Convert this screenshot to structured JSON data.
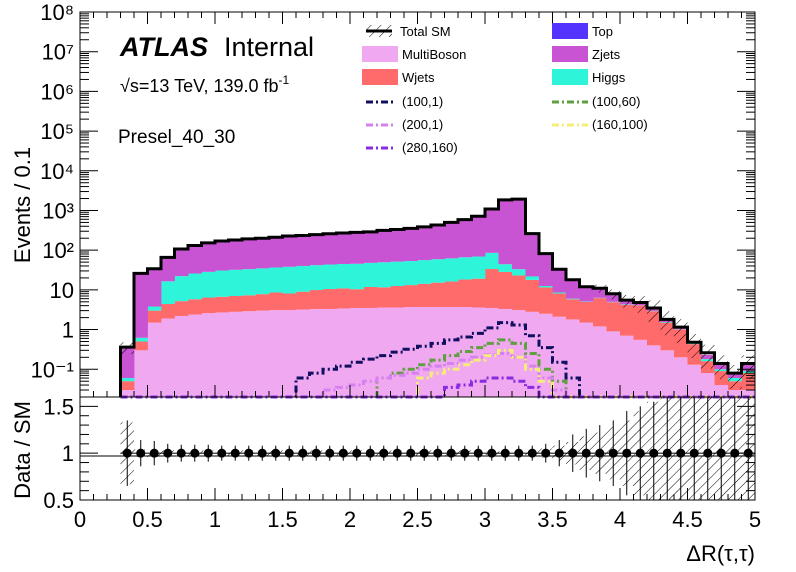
{
  "chart_data": [
    {
      "type": "histogram-stack",
      "title": "",
      "xlabel": "ΔR(τ,τ)",
      "ylabel": "Events / 0.1",
      "xlim": [
        0,
        5
      ],
      "ylim": [
        0.02,
        100000000
      ],
      "log_y": true,
      "bin_edges_start": 0.3,
      "bin_width": 0.1,
      "x_ticks": [
        "0",
        "0.5",
        "1",
        "1.5",
        "2",
        "2.5",
        "3",
        "3.5",
        "4",
        "4.5",
        "5"
      ],
      "y_ticks": [
        "10⁻¹",
        "1",
        "10",
        "10²",
        "10³",
        "10⁴",
        "10⁵",
        "10⁶",
        "10⁷",
        "10⁸"
      ],
      "series": [
        {
          "name": "MultiBoson",
          "color": "#f0a8f0",
          "values": [
            0.03,
            0.3,
            1.5,
            1.9,
            2.2,
            2.4,
            2.6,
            2.7,
            2.8,
            2.9,
            3.0,
            3.1,
            3.1,
            3.2,
            3.3,
            3.3,
            3.4,
            3.5,
            3.5,
            3.6,
            3.6,
            3.7,
            3.7,
            3.7,
            3.7,
            3.7,
            3.6,
            3.5,
            3.3,
            3.1,
            2.8,
            2.5,
            2.1,
            1.8,
            1.5,
            1.2,
            0.9,
            0.7,
            0.55,
            0.4,
            0.3,
            0.2,
            0.13,
            0.08,
            0.04,
            0.03,
            0.03
          ]
        },
        {
          "name": "Wjets",
          "color": "#ff6b6b",
          "values": [
            0.02,
            0.2,
            1.5,
            2.5,
            3.0,
            3.4,
            3.8,
            4.0,
            4.2,
            4.4,
            4.8,
            5.5,
            5.0,
            5.8,
            6.6,
            7.2,
            7.5,
            6.9,
            8.3,
            8.0,
            8.9,
            9.5,
            10.5,
            11.5,
            12.5,
            14.5,
            15.5,
            30,
            25,
            20,
            15,
            9,
            6,
            4,
            3.5,
            5,
            4,
            3.5,
            3.5,
            2.5,
            1.2,
            0.8,
            0.3,
            0.08,
            0.05,
            0.02,
            0.05
          ]
        },
        {
          "name": "Higgs",
          "color": "#2ef5d9",
          "values": [
            0.01,
            0.12,
            0.8,
            12,
            17,
            20,
            22,
            24,
            25,
            26,
            27,
            28,
            30,
            31,
            32,
            33,
            34,
            35,
            36,
            38,
            39,
            40,
            42,
            44,
            46,
            48,
            50,
            52,
            16,
            10,
            4,
            1,
            0.5,
            0.2,
            0.1,
            0.1,
            0.1,
            0.1,
            0.05,
            0.05,
            0.05,
            0.02,
            0.02,
            0.02,
            0.01,
            0.01,
            0.01
          ]
        },
        {
          "name": "Zjets",
          "color": "#c954d3",
          "values": [
            0.3,
            25,
            30,
            50,
            85,
            105,
            125,
            140,
            150,
            160,
            165,
            175,
            190,
            195,
            205,
            215,
            225,
            235,
            240,
            265,
            280,
            300,
            330,
            370,
            440,
            520,
            640,
            1000,
            1800,
            1900,
            240,
            70,
            25,
            12,
            7,
            5.5,
            3,
            1.5,
            0.8,
            0.55,
            0.3,
            0.15,
            0.05,
            0.05,
            0.05,
            0.02,
            0.05
          ]
        },
        {
          "name": "Top",
          "color": "#5533ff",
          "values": [
            0,
            0,
            0,
            0,
            0,
            0,
            0,
            0,
            0,
            0,
            0,
            0,
            0,
            0,
            0,
            0,
            0,
            0,
            0,
            0,
            0,
            0,
            0,
            0,
            0,
            0,
            0,
            0,
            0,
            0,
            0,
            0,
            0,
            0,
            0,
            0,
            0,
            0,
            0,
            0,
            0,
            0,
            0,
            0,
            0,
            0,
            0
          ]
        }
      ],
      "total_sm": {
        "name": "Total SM",
        "color": "#000000",
        "values": [
          0.36,
          26,
          34,
          66,
          107,
          131,
          153,
          170,
          181,
          192,
          200,
          212,
          228,
          235,
          247,
          259,
          270,
          281,
          288,
          315,
          331,
          354,
          387,
          430,
          502,
          590,
          713,
          1089,
          1846,
          1934,
          262,
          82,
          33,
          18,
          12,
          11,
          8,
          5.5,
          4.8,
          3.5,
          1.8,
          1.15,
          0.48,
          0.26,
          0.14,
          0.08,
          0.14
        ]
      },
      "signals": [
        {
          "name": "(100,1)",
          "color": "#101060",
          "dash": "7,3,2,3",
          "values": [
            0,
            0,
            0,
            0,
            0,
            0,
            0,
            0,
            0,
            0,
            0,
            0,
            0,
            0.06,
            0.08,
            0.1,
            0.12,
            0.15,
            0.18,
            0.22,
            0.27,
            0.32,
            0.38,
            0.45,
            0.55,
            0.65,
            0.8,
            1.1,
            1.5,
            1.3,
            0.7,
            0.35,
            0.15,
            0.06,
            0,
            0,
            0,
            0,
            0,
            0,
            0,
            0,
            0,
            0,
            0,
            0,
            0
          ]
        },
        {
          "name": "(100,60)",
          "color": "#5f9f3f",
          "dash": "7,3,2,3",
          "values": [
            0,
            0,
            0,
            0,
            0,
            0,
            0,
            0,
            0,
            0,
            0,
            0,
            0,
            0,
            0,
            0,
            0,
            0,
            0,
            0.06,
            0.08,
            0.1,
            0.13,
            0.17,
            0.22,
            0.28,
            0.35,
            0.45,
            0.55,
            0.45,
            0.25,
            0.1,
            0.05,
            0,
            0,
            0,
            0,
            0,
            0,
            0,
            0,
            0,
            0,
            0,
            0,
            0,
            0
          ]
        },
        {
          "name": "(200,1)",
          "color": "#d780f0",
          "dash": "7,3,2,3",
          "values": [
            0,
            0,
            0,
            0,
            0,
            0,
            0,
            0,
            0,
            0,
            0,
            0,
            0,
            0,
            0,
            0.03,
            0.035,
            0.04,
            0.05,
            0.06,
            0.07,
            0.08,
            0.1,
            0.12,
            0.14,
            0.17,
            0.2,
            0.23,
            0.25,
            0.2,
            0.12,
            0.06,
            0.03,
            0,
            0,
            0,
            0,
            0,
            0,
            0,
            0,
            0,
            0,
            0,
            0,
            0,
            0
          ]
        },
        {
          "name": "(160,100)",
          "color": "#f5ec7a",
          "dash": "7,3,2,3",
          "values": [
            0,
            0,
            0,
            0,
            0,
            0,
            0,
            0,
            0,
            0,
            0,
            0,
            0,
            0,
            0,
            0,
            0,
            0,
            0,
            0,
            0,
            0,
            0.06,
            0.08,
            0.1,
            0.13,
            0.17,
            0.22,
            0.3,
            0.2,
            0.1,
            0.05,
            0,
            0,
            0,
            0,
            0,
            0,
            0,
            0,
            0,
            0,
            0,
            0,
            0,
            0,
            0
          ]
        },
        {
          "name": "(280,160)",
          "color": "#8a2be2",
          "dash": "7,3,2,3",
          "values": [
            0,
            0,
            0,
            0,
            0,
            0,
            0,
            0,
            0,
            0,
            0,
            0,
            0,
            0,
            0,
            0,
            0,
            0,
            0,
            0,
            0,
            0,
            0,
            0,
            0.035,
            0.04,
            0.05,
            0.06,
            0.06,
            0.05,
            0.035,
            0,
            0,
            0,
            0,
            0,
            0,
            0,
            0,
            0,
            0,
            0,
            0,
            0,
            0,
            0,
            0
          ]
        }
      ],
      "legend_placement": "top-right"
    },
    {
      "type": "ratio",
      "ylabel": "Data / SM",
      "xlabel": "ΔR(τ,τ)",
      "xlim": [
        0,
        5
      ],
      "ylim": [
        0.5,
        1.6
      ],
      "y_ticks": [
        "0.5",
        "1",
        "1.5"
      ],
      "x_points": [
        0.35,
        0.45,
        0.55,
        0.65,
        0.75,
        0.85,
        0.95,
        1.05,
        1.15,
        1.25,
        1.35,
        1.45,
        1.55,
        1.65,
        1.75,
        1.85,
        1.95,
        2.05,
        2.15,
        2.25,
        2.35,
        2.45,
        2.55,
        2.65,
        2.75,
        2.85,
        2.95,
        3.05,
        3.15,
        3.25,
        3.35,
        3.45,
        3.55,
        3.65,
        3.75,
        3.85,
        3.95,
        4.05,
        4.15,
        4.25,
        4.35,
        4.45,
        4.55,
        4.65,
        4.75,
        4.85,
        4.95
      ],
      "y_values": [
        1,
        1,
        1,
        1,
        1,
        1,
        1,
        1,
        1,
        1,
        1,
        1,
        1,
        1,
        1,
        1,
        1,
        1,
        1,
        1,
        1,
        1,
        1,
        1,
        1,
        1,
        1,
        1,
        1,
        1,
        1,
        1,
        1,
        1,
        1,
        1,
        1,
        1,
        1,
        1,
        1,
        1,
        1,
        1,
        1,
        1,
        1
      ],
      "y_err": [
        0.35,
        0.14,
        0.13,
        0.1,
        0.09,
        0.09,
        0.09,
        0.08,
        0.08,
        0.08,
        0.08,
        0.08,
        0.08,
        0.08,
        0.08,
        0.08,
        0.08,
        0.08,
        0.08,
        0.08,
        0.08,
        0.08,
        0.08,
        0.08,
        0.08,
        0.08,
        0.08,
        0.08,
        0.08,
        0.08,
        0.08,
        0.1,
        0.14,
        0.2,
        0.26,
        0.3,
        0.35,
        0.45,
        0.5,
        0.55,
        0.6,
        0.6,
        0.6,
        0.6,
        0.6,
        0.6,
        0.6
      ],
      "mc_unc": [
        0.33,
        0.04,
        0.04,
        0.03,
        0.03,
        0.03,
        0.03,
        0.03,
        0.03,
        0.03,
        0.03,
        0.03,
        0.03,
        0.03,
        0.03,
        0.03,
        0.03,
        0.03,
        0.03,
        0.03,
        0.03,
        0.03,
        0.03,
        0.03,
        0.03,
        0.03,
        0.03,
        0.02,
        0.02,
        0.02,
        0.03,
        0.05,
        0.08,
        0.12,
        0.18,
        0.22,
        0.28,
        0.35,
        0.45,
        0.55,
        0.6,
        0.6,
        0.6,
        0.6,
        0.6,
        0.6,
        0.6
      ]
    }
  ],
  "labels": {
    "atlas": "ATLAS",
    "internal": "Internal",
    "sqrt_s": "√s",
    "energy": "=13 TeV, 139.0 fb",
    "lumi_exp": "-1",
    "region": "Presel_40_30"
  },
  "legend": {
    "total_sm": "Total SM",
    "top": "Top",
    "multiboson": "MultiBoson",
    "zjets": "Zjets",
    "wjets": "Wjets",
    "higgs": "Higgs",
    "s100_1": "(100,1)",
    "s100_60": "(100,60)",
    "s200_1": "(200,1)",
    "s160_100": "(160,100)",
    "s280_160": "(280,160)"
  }
}
